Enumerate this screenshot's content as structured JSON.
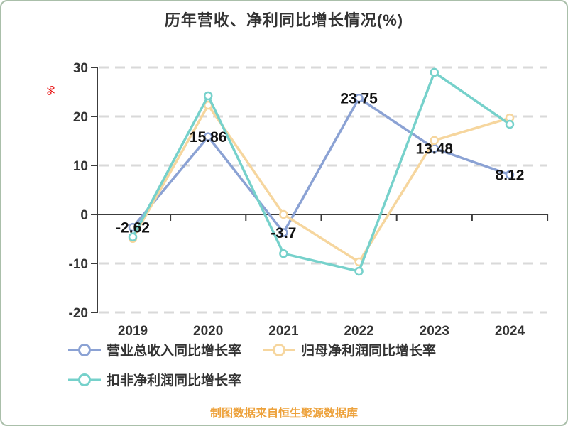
{
  "title": "历年营收、净利同比增长情况(%)",
  "y_axis": {
    "unit": "%",
    "unit_color": "#E60000"
  },
  "chart_data": {
    "type": "line",
    "categories": [
      "2019",
      "2020",
      "2021",
      "2022",
      "2023",
      "2024"
    ],
    "series": [
      {
        "name": "营业总收入同比增长率",
        "color": "#8BA2D4",
        "values": [
          -2.62,
          15.86,
          -3.7,
          23.75,
          13.48,
          8.12
        ],
        "labels": [
          "-2.62",
          "15.86",
          "-3.7",
          "23.75",
          "13.48",
          "8.12"
        ],
        "show_labels": true
      },
      {
        "name": "归母净利润同比增长率",
        "color": "#F6D69E",
        "values": [
          -4.9,
          22.3,
          0,
          -9.7,
          15.1,
          19.7
        ],
        "show_labels": false
      },
      {
        "name": "扣非净利润同比增长率",
        "color": "#76D1CB",
        "values": [
          -4.6,
          24.2,
          -8,
          -11.6,
          29,
          18.4
        ],
        "show_labels": false
      }
    ],
    "yticks": [
      30,
      20,
      10,
      0,
      -10,
      -20
    ],
    "ylim": [
      -20,
      30
    ],
    "grid": "dashed horizontal",
    "legend_position": "bottom-left",
    "marker": "circle-white-fill"
  },
  "footer": {
    "caption": "制图数据来自恒生聚源数据库"
  }
}
